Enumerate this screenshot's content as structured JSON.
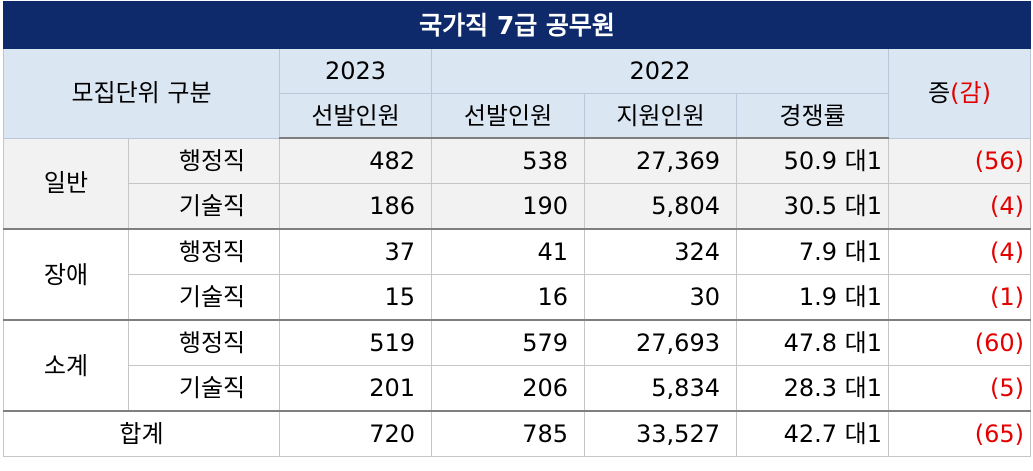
{
  "title": "국가직 7급 공무원",
  "header": {
    "division": "모집단위 구분",
    "year_2023": "2023",
    "year_2022": "2022",
    "selected_2023": "선발인원",
    "selected_2022": "선발인원",
    "applicants_2022": "지원인원",
    "ratio_2022": "경쟁률",
    "change_prefix": "증",
    "change_suffix": "(감)"
  },
  "groups": [
    {
      "name": "일반",
      "rows": [
        {
          "type": "행정직",
          "sel_2023": "482",
          "sel_2022": "538",
          "applicants": "27,369",
          "ratio": "50.9 대1",
          "change": "(56)"
        },
        {
          "type": "기술직",
          "sel_2023": "186",
          "sel_2022": "190",
          "applicants": "5,804",
          "ratio": "30.5 대1",
          "change": "(4)"
        }
      ]
    },
    {
      "name": "장애",
      "rows": [
        {
          "type": "행정직",
          "sel_2023": "37",
          "sel_2022": "41",
          "applicants": "324",
          "ratio": "7.9 대1",
          "change": "(4)"
        },
        {
          "type": "기술직",
          "sel_2023": "15",
          "sel_2022": "16",
          "applicants": "30",
          "ratio": "1.9 대1",
          "change": "(1)"
        }
      ]
    },
    {
      "name": "소계",
      "rows": [
        {
          "type": "행정직",
          "sel_2023": "519",
          "sel_2022": "579",
          "applicants": "27,693",
          "ratio": "47.8 대1",
          "change": "(60)"
        },
        {
          "type": "기술직",
          "sel_2023": "201",
          "sel_2022": "206",
          "applicants": "5,834",
          "ratio": "28.3 대1",
          "change": "(5)"
        }
      ]
    }
  ],
  "total": {
    "label": "합계",
    "sel_2023": "720",
    "sel_2022": "785",
    "applicants": "33,527",
    "ratio": "42.7 대1",
    "change": "(65)"
  }
}
